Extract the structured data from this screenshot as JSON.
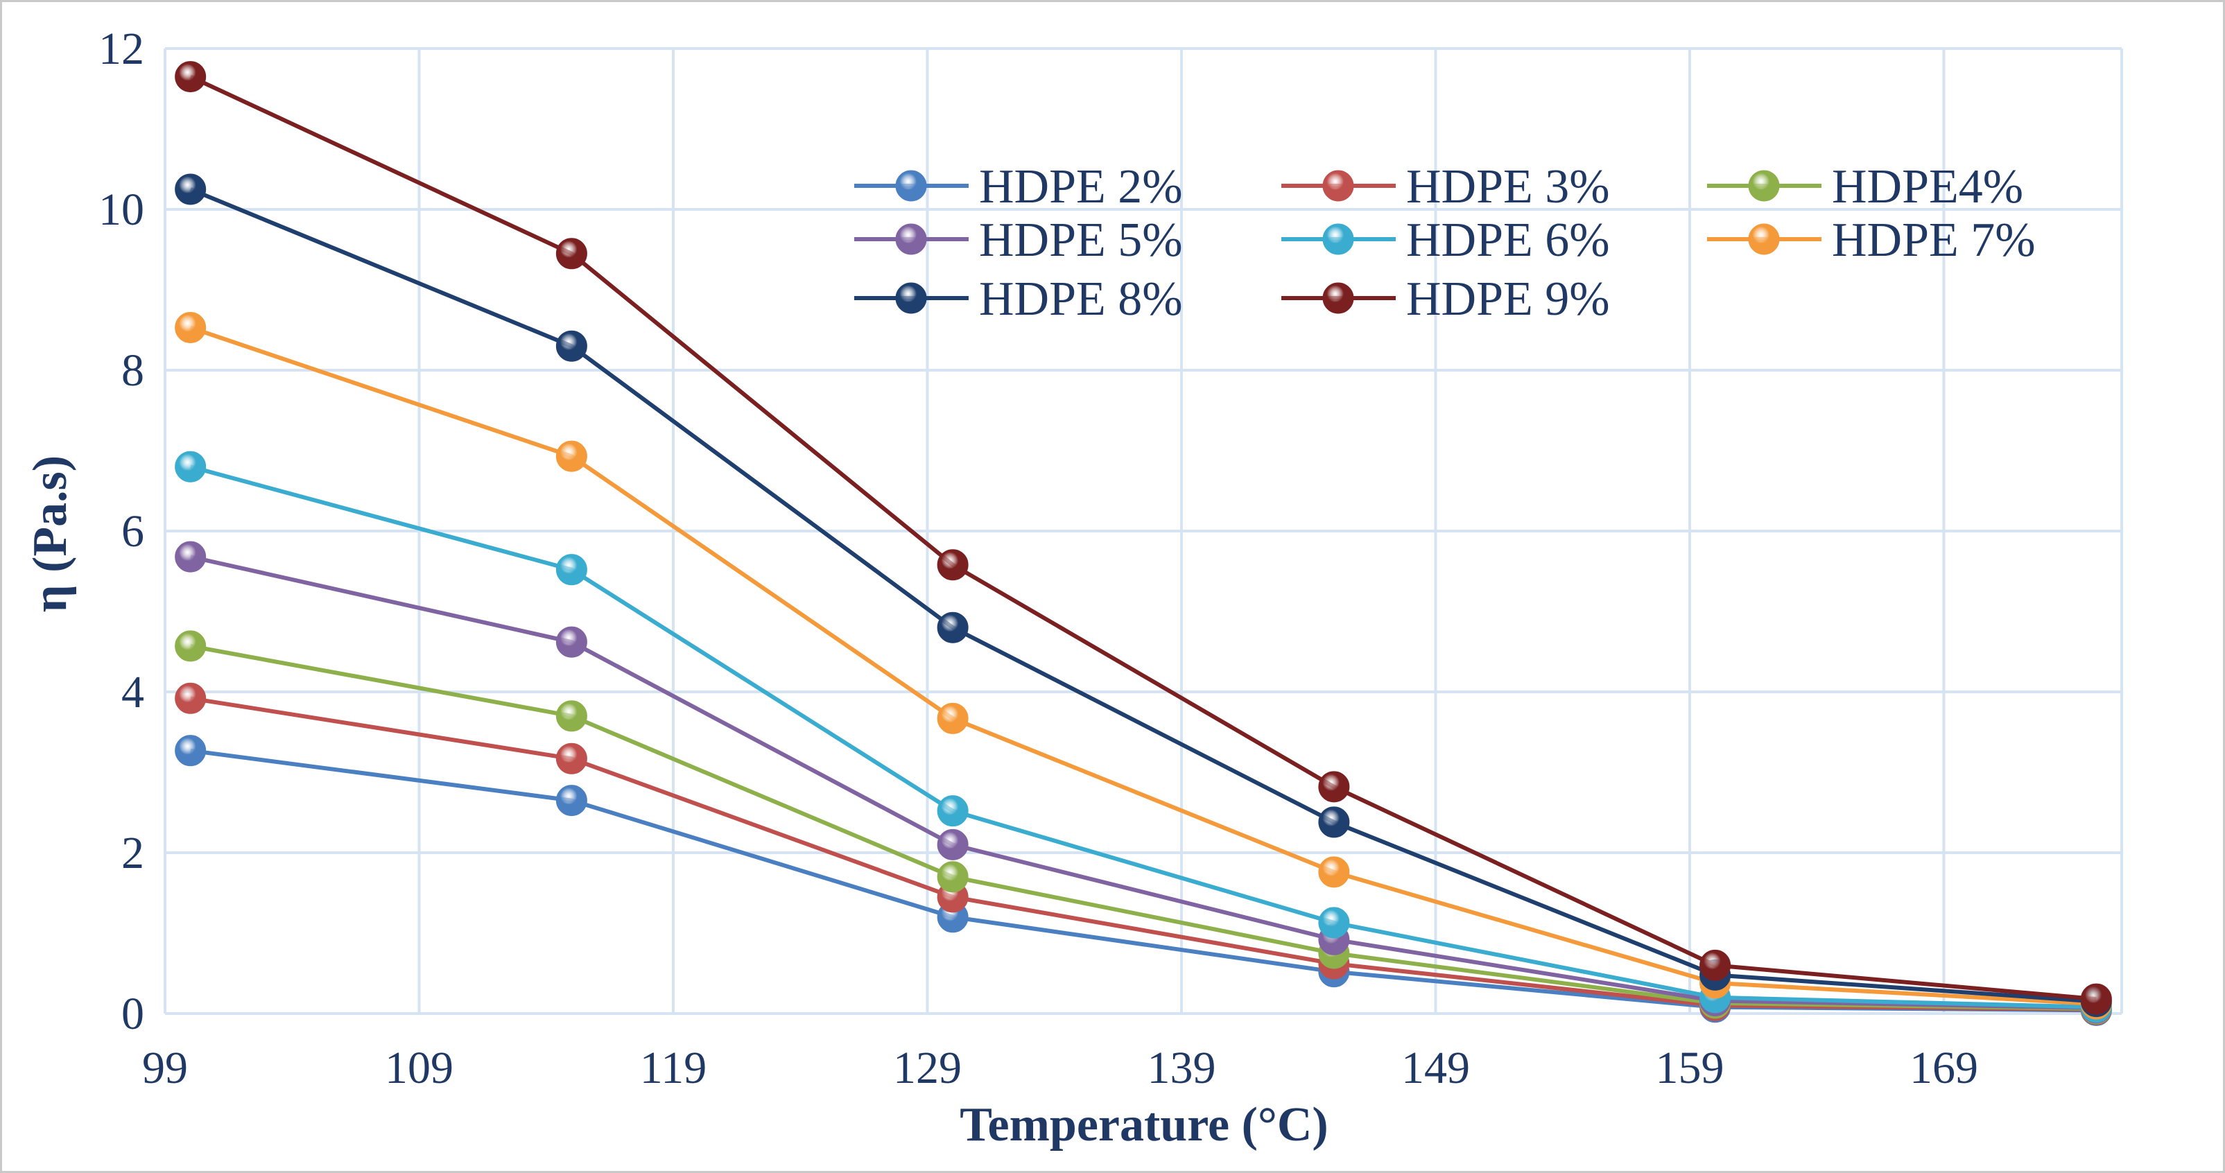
{
  "chart_data": {
    "type": "line",
    "title": "",
    "xlabel": "Temperature (°C)",
    "ylabel": "η (Pa.s)",
    "xlim": [
      99,
      176
    ],
    "ylim": [
      0,
      12
    ],
    "x_ticks": [
      99,
      109,
      119,
      129,
      139,
      149,
      159,
      169
    ],
    "y_ticks": [
      0,
      2,
      4,
      6,
      8,
      10,
      12
    ],
    "grid": true,
    "legend_position": "top-right",
    "legend_columns": 3,
    "x": [
      100,
      115,
      130,
      145,
      160,
      175
    ],
    "series": [
      {
        "name": "HDPE 2%",
        "color": "#4a7fc1",
        "values": [
          3.27,
          2.65,
          1.2,
          0.52,
          0.08,
          0.04
        ]
      },
      {
        "name": "HDPE 3%",
        "color": "#c0504d",
        "values": [
          3.92,
          3.17,
          1.45,
          0.62,
          0.1,
          0.05
        ]
      },
      {
        "name": "HDPE4%",
        "color": "#8db04a",
        "values": [
          4.57,
          3.7,
          1.7,
          0.75,
          0.13,
          0.06
        ]
      },
      {
        "name": "HDPE 5%",
        "color": "#8064a2",
        "values": [
          5.68,
          4.62,
          2.1,
          0.92,
          0.16,
          0.07
        ]
      },
      {
        "name": "HDPE 6%",
        "color": "#3aaccf",
        "values": [
          6.8,
          5.52,
          2.52,
          1.13,
          0.2,
          0.08
        ]
      },
      {
        "name": "HDPE 7%",
        "color": "#f59a3a",
        "values": [
          8.53,
          6.93,
          3.67,
          1.76,
          0.38,
          0.12
        ]
      },
      {
        "name": "HDPE 8%",
        "color": "#1f3f6e",
        "values": [
          10.25,
          8.3,
          4.8,
          2.38,
          0.48,
          0.15
        ]
      },
      {
        "name": "HDPE 9%",
        "color": "#7b2020",
        "values": [
          11.65,
          9.45,
          5.58,
          2.82,
          0.6,
          0.18
        ]
      }
    ]
  }
}
